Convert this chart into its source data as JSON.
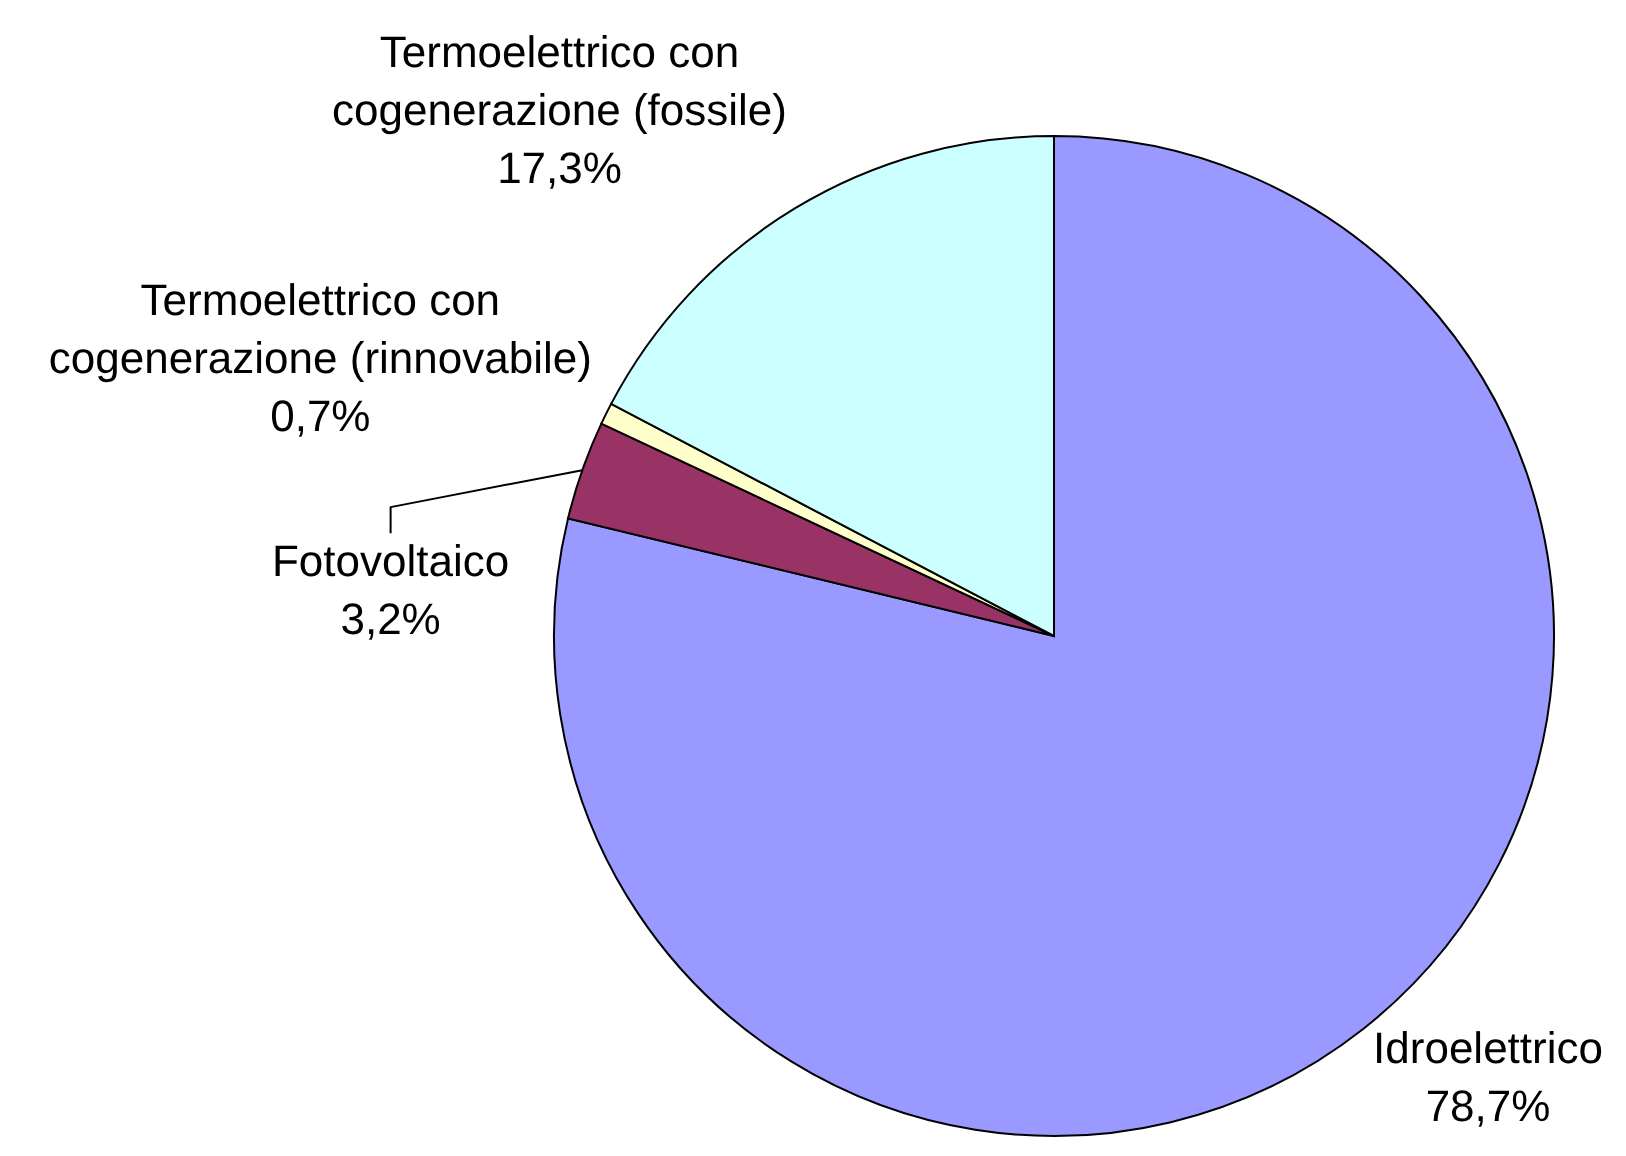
{
  "chart_data": {
    "type": "pie",
    "categories": [
      "Idroelettrico",
      "Fotovoltaico",
      "Termoelettrico con cogenerazione (rinnovabile)",
      "Termoelettrico con cogenerazione (fossile)"
    ],
    "values": [
      78.7,
      3.2,
      0.7,
      17.3
    ],
    "colors": [
      "#9999ff",
      "#993366",
      "#ffffcc",
      "#ccffff"
    ],
    "value_labels": [
      "78,7%",
      "3,2%",
      "0,7%",
      "17,3%"
    ]
  }
}
